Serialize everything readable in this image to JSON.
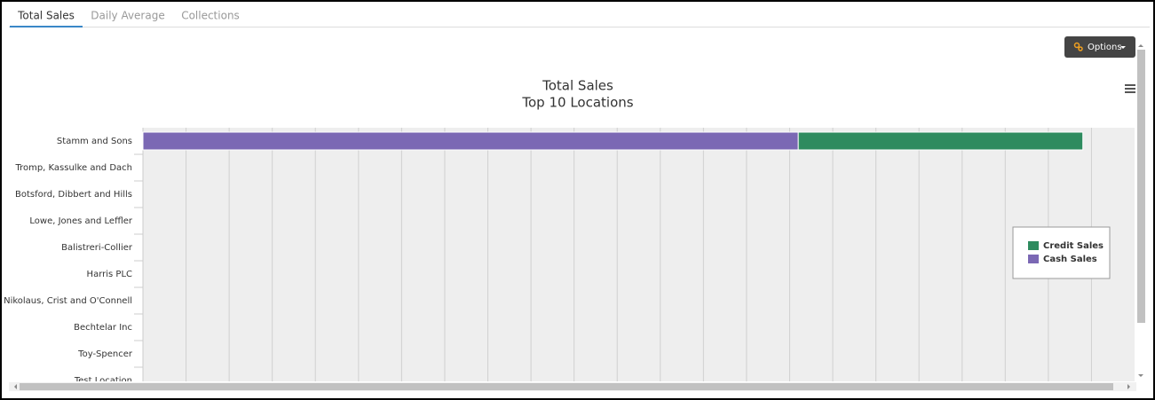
{
  "tabs": [
    "Total Sales",
    "Daily Average",
    "Collections"
  ],
  "options_button": "Options",
  "chart_data": {
    "type": "bar",
    "orientation": "horizontal",
    "stacked": true,
    "title": "Total Sales",
    "subtitle": "Top 10 Locations",
    "categories": [
      "Stamm and Sons",
      "Tromp, Kassulke and Dach",
      "Botsford, Dibbert and Hills",
      "Lowe, Jones and Leffler",
      "Balistreri-Collier",
      "Harris PLC",
      "Nikolaus, Crist and O'Connell",
      "Bechtelar Inc",
      "Toy-Spencer",
      "Test Location"
    ],
    "series": [
      {
        "name": "Credit Sales",
        "color": "#2e8b5f",
        "values": [
          6.6,
          null,
          null,
          null,
          null,
          null,
          null,
          null,
          null,
          null
        ]
      },
      {
        "name": "Cash Sales",
        "color": "#7b68b4",
        "values": [
          15.2,
          null,
          null,
          null,
          null,
          null,
          null,
          null,
          null,
          null
        ]
      }
    ],
    "xlim": [
      0,
      23
    ],
    "xticks": [
      0,
      1,
      2,
      3,
      4,
      5,
      6,
      7,
      8,
      9,
      10,
      11,
      12,
      13,
      14,
      15,
      16,
      17,
      18,
      19,
      20,
      21,
      22
    ],
    "grid": true,
    "legend": "right"
  }
}
